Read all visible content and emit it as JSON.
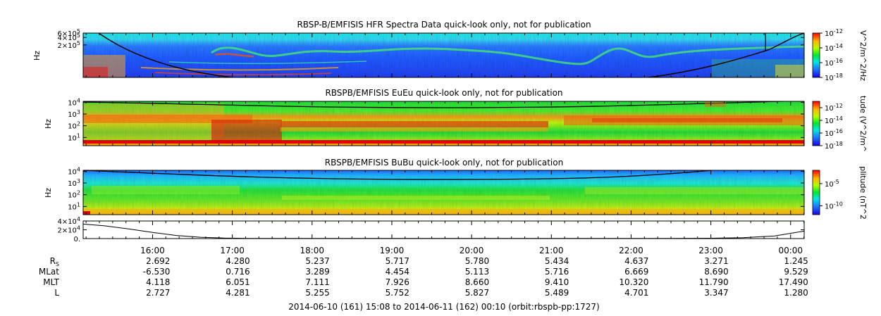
{
  "chart_data": [
    {
      "type": "heatmap",
      "title": "RBSP-B/EMFISIS  HFR Spectra Data quick-look only, not for publication",
      "ylabel": "Hz",
      "yscale": "log",
      "ylim": [
        10000,
        600000
      ],
      "yticks": [
        {
          "value": 600000,
          "mant": "6×10",
          "exp": "5"
        },
        {
          "value": 400000,
          "mant": "4×10",
          "exp": "5"
        },
        {
          "value": 200000,
          "mant": "2×10",
          "exp": "5"
        }
      ],
      "colorbar": {
        "label": "V^2/m^2/Hz",
        "range": [
          -18,
          -12
        ],
        "ticks": [
          {
            "value": -12,
            "mant": "10",
            "exp": "-12"
          },
          {
            "value": -14,
            "mant": "10",
            "exp": "-14"
          },
          {
            "value": -16,
            "mant": "10",
            "exp": "-16"
          },
          {
            "value": -18,
            "mant": "10",
            "exp": "-18"
          }
        ]
      }
    },
    {
      "type": "heatmap",
      "title": "RBSPB/EMFISIS  EuEu quick-look only, not for publication",
      "ylabel": "Hz",
      "yscale": "log",
      "ylim": [
        2,
        12000
      ],
      "yticks": [
        {
          "value": 10000,
          "mant": "10",
          "exp": "4"
        },
        {
          "value": 1000,
          "mant": "10",
          "exp": "3"
        },
        {
          "value": 100,
          "mant": "10",
          "exp": "2"
        },
        {
          "value": 10,
          "mant": "10",
          "exp": "1"
        }
      ],
      "colorbar": {
        "label": "tude (V^2/m^",
        "range": [
          -18,
          -11
        ],
        "ticks": [
          {
            "value": -12,
            "mant": "10",
            "exp": "-12"
          },
          {
            "value": -14,
            "mant": "10",
            "exp": "-14"
          },
          {
            "value": -16,
            "mant": "10",
            "exp": "-16"
          },
          {
            "value": -18,
            "mant": "10",
            "exp": "-18"
          }
        ]
      }
    },
    {
      "type": "heatmap",
      "title": "RBSPB/EMFISIS  BuBu quick-look only, not for publication",
      "ylabel": "Hz",
      "yscale": "log",
      "ylim": [
        2,
        12000
      ],
      "yticks": [
        {
          "value": 10000,
          "mant": "10",
          "exp": "4"
        },
        {
          "value": 1000,
          "mant": "10",
          "exp": "3"
        },
        {
          "value": 100,
          "mant": "10",
          "exp": "2"
        },
        {
          "value": 10,
          "mant": "10",
          "exp": "1"
        }
      ],
      "colorbar": {
        "label": "plitude (nT^2",
        "range": [
          -12,
          -2
        ],
        "ticks": [
          {
            "value": -5,
            "mant": "10",
            "exp": "-5"
          },
          {
            "value": -10,
            "mant": "10",
            "exp": "-10"
          }
        ]
      }
    },
    {
      "type": "line",
      "title": "",
      "ylim": [
        0,
        40000
      ],
      "yticks": [
        {
          "value": 40000,
          "mant": "4×10",
          "exp": "4"
        },
        {
          "value": 20000,
          "mant": "2×10",
          "exp": "4"
        },
        {
          "value": 0,
          "mant": "0.",
          "exp": ""
        }
      ],
      "x": [
        15.13,
        15.4,
        15.7,
        16.0,
        16.3,
        16.6,
        16.9,
        17.2,
        22.5,
        23.0,
        23.4,
        23.8,
        24.0,
        24.17
      ],
      "values": [
        33000,
        29000,
        22000,
        14000,
        7000,
        3000,
        1200,
        500,
        500,
        800,
        2000,
        6000,
        12000,
        17000
      ]
    }
  ],
  "x_axis": {
    "range_hours": [
      15.13,
      24.17
    ],
    "ticks": [
      {
        "hour": 16,
        "label": "16:00"
      },
      {
        "hour": 17,
        "label": "17:00"
      },
      {
        "hour": 18,
        "label": "18:00"
      },
      {
        "hour": 19,
        "label": "19:00"
      },
      {
        "hour": 20,
        "label": "20:00"
      },
      {
        "hour": 21,
        "label": "21:00"
      },
      {
        "hour": 22,
        "label": "22:00"
      },
      {
        "hour": 23,
        "label": "23:00"
      },
      {
        "hour": 24,
        "label": "00:00"
      }
    ]
  },
  "ephemeris": [
    {
      "label": "R",
      "sub": "S",
      "values": [
        "2.692",
        "4.280",
        "5.237",
        "5.717",
        "5.780",
        "5.434",
        "4.637",
        "3.271",
        "1.245"
      ]
    },
    {
      "label": "MLat",
      "sub": "",
      "values": [
        "-6.530",
        "0.716",
        "3.289",
        "4.454",
        "5.113",
        "5.716",
        "6.669",
        "8.690",
        "9.529"
      ]
    },
    {
      "label": "MLT",
      "sub": "",
      "values": [
        "4.118",
        "6.051",
        "7.111",
        "7.926",
        "8.660",
        "9.410",
        "10.320",
        "11.790",
        "17.490"
      ]
    },
    {
      "label": "L",
      "sub": "",
      "values": [
        "2.727",
        "4.281",
        "5.255",
        "5.752",
        "5.827",
        "5.489",
        "4.701",
        "3.347",
        "1.280"
      ]
    }
  ],
  "footer": "2014-06-10 (161) 15:08 to 2014-06-11 (162) 00:10 (orbit:rbspb-pp:1727)"
}
